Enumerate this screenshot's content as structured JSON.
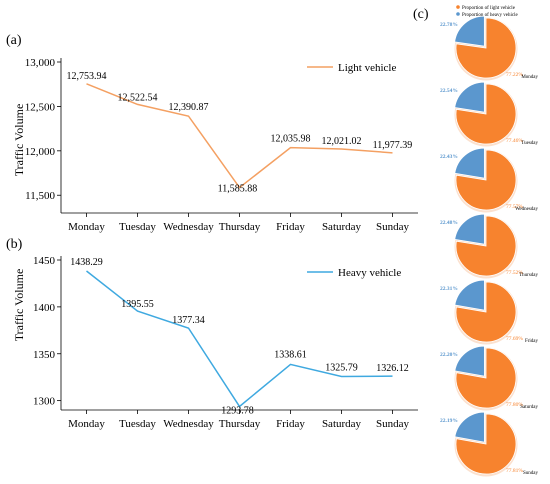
{
  "chart_data": [
    {
      "type": "line",
      "panel_label": "(a)",
      "categories": [
        "Monday",
        "Tuesday",
        "Wednesday",
        "Thursday",
        "Friday",
        "Saturday",
        "Sunday"
      ],
      "series": [
        {
          "name": "Light vehicle",
          "values": [
            12753.94,
            12522.54,
            12390.87,
            11585.88,
            12035.98,
            12021.02,
            11977.39
          ],
          "color": "#F4A062"
        }
      ],
      "data_labels": [
        "12,753.94",
        "12,522.54",
        "12,390.87",
        "11,585.88",
        "12,035.98",
        "12,021.02",
        "11,977.39"
      ],
      "ylabel": "Traffic Volume",
      "ylim": [
        11300,
        13000
      ],
      "yticks": [
        11500,
        12000,
        12500,
        13000
      ],
      "ytick_labels": [
        "11,500",
        "12,000",
        "12,500",
        "13,000"
      ],
      "legend_position": "top-right",
      "grid": false
    },
    {
      "type": "line",
      "panel_label": "(b)",
      "categories": [
        "Monday",
        "Tuesday",
        "Wednesday",
        "Thursday",
        "Friday",
        "Saturday",
        "Sunday"
      ],
      "series": [
        {
          "name": "Heavy vehicle",
          "values": [
            1438.29,
            1395.55,
            1377.34,
            1293.78,
            1338.61,
            1325.79,
            1326.12
          ],
          "color": "#3FA9E0"
        }
      ],
      "data_labels": [
        "1438.29",
        "1395.55",
        "1377.34",
        "1293.78",
        "1338.61",
        "1325.79",
        "1326.12"
      ],
      "ylabel": "Traffic Volume",
      "ylim": [
        1290,
        1450
      ],
      "yticks": [
        1300,
        1350,
        1400,
        1450
      ],
      "ytick_labels": [
        "1300",
        "1350",
        "1400",
        "1450"
      ],
      "legend_position": "top-right",
      "grid": false
    },
    {
      "type": "pie",
      "panel_label": "(c)",
      "legend": [
        "Proportion of light vehicle",
        "Proportion of heavy vehicle"
      ],
      "colors": {
        "light": "#F7832E",
        "heavy": "#5B97CE"
      },
      "pies": [
        {
          "day": "Monday",
          "heavy": 22.78,
          "light": 77.22,
          "heavy_label": "22.78%",
          "light_label": "77.22%"
        },
        {
          "day": "Tuesday",
          "heavy": 22.54,
          "light": 77.46,
          "heavy_label": "22.54%",
          "light_label": "77.46%"
        },
        {
          "day": "Wednesday",
          "heavy": 22.43,
          "light": 77.57,
          "heavy_label": "22.43%",
          "light_label": "77.57%"
        },
        {
          "day": "Thursday",
          "heavy": 22.48,
          "light": 77.52,
          "heavy_label": "22.48%",
          "light_label": "77.52%"
        },
        {
          "day": "Friday",
          "heavy": 22.31,
          "light": 77.69,
          "heavy_label": "22.31%",
          "light_label": "77.69%"
        },
        {
          "day": "Saturday",
          "heavy": 22.2,
          "light": 77.8,
          "heavy_label": "22.20%",
          "light_label": "77.80%"
        },
        {
          "day": "Sunday",
          "heavy": 22.19,
          "light": 77.81,
          "heavy_label": "22.19%",
          "light_label": "77.81%"
        }
      ]
    }
  ]
}
